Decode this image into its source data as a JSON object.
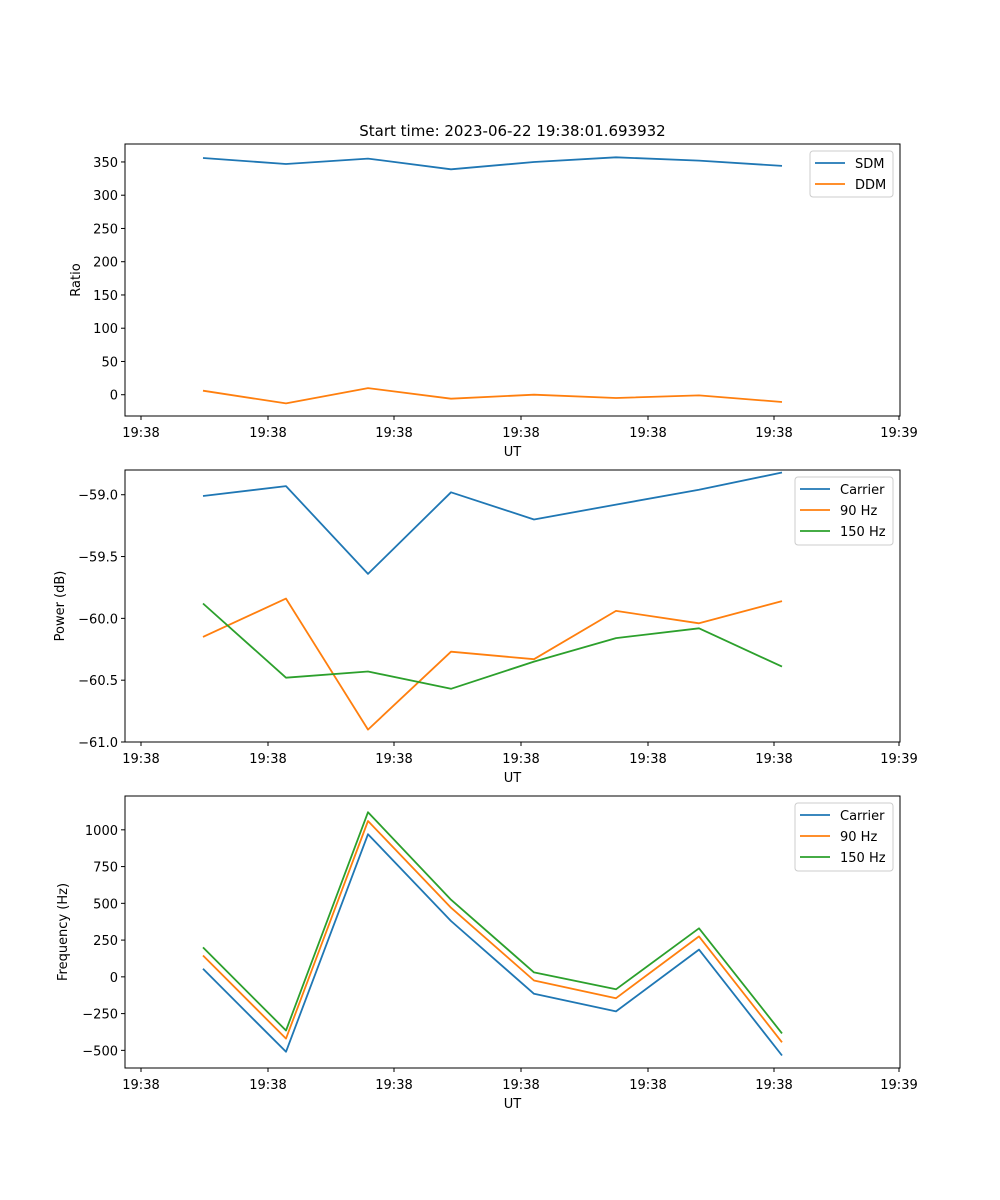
{
  "colors": {
    "blue": "#1f77b4",
    "orange": "#ff7f0e",
    "green": "#2ca02c"
  },
  "chart_data": [
    {
      "type": "line",
      "title": "Start time: 2023-06-22 19:38:01.693932",
      "xlabel": "UT",
      "ylabel": "Ratio",
      "x_tick_labels": [
        "19:38",
        "19:38",
        "19:38",
        "19:38",
        "19:38",
        "19:38",
        "19:38",
        "19:39"
      ],
      "ylim": [
        -32,
        377
      ],
      "y_ticks": [
        0,
        50,
        100,
        150,
        200,
        250,
        300,
        350
      ],
      "y_tick_labels": [
        "0",
        "50",
        "100",
        "150",
        "200",
        "250",
        "300",
        "350"
      ],
      "legend": "top-right",
      "series": [
        {
          "name": "SDM",
          "color": "#1f77b4",
          "values": [
            356,
            347,
            355,
            339,
            350,
            357,
            352,
            344
          ]
        },
        {
          "name": "DDM",
          "color": "#ff7f0e",
          "values": [
            6,
            -13,
            10,
            -6,
            0,
            -5,
            -1,
            -11
          ]
        }
      ]
    },
    {
      "type": "line",
      "title": "",
      "xlabel": "UT",
      "ylabel": "Power (dB)",
      "x_tick_labels": [
        "19:38",
        "19:38",
        "19:38",
        "19:38",
        "19:38",
        "19:38",
        "19:38",
        "19:39"
      ],
      "ylim": [
        -61.0,
        -58.8
      ],
      "y_ticks": [
        -61.0,
        -60.5,
        -60.0,
        -59.5,
        -59.0
      ],
      "y_tick_labels": [
        "−61.0",
        "−60.5",
        "−60.0",
        "−59.5",
        "−59.0"
      ],
      "legend": "top-right",
      "series": [
        {
          "name": "Carrier",
          "color": "#1f77b4",
          "values": [
            -59.01,
            -58.93,
            -59.64,
            -58.98,
            -59.2,
            -59.08,
            -58.96,
            -58.82
          ]
        },
        {
          "name": "90 Hz",
          "color": "#ff7f0e",
          "values": [
            -60.15,
            -59.84,
            -60.9,
            -60.27,
            -60.33,
            -59.94,
            -60.04,
            -59.86
          ]
        },
        {
          "name": "150 Hz",
          "color": "#2ca02c",
          "values": [
            -59.88,
            -60.48,
            -60.43,
            -60.57,
            -60.35,
            -60.16,
            -60.08,
            -60.39
          ]
        }
      ]
    },
    {
      "type": "line",
      "title": "",
      "xlabel": "UT",
      "ylabel": "Frequency (Hz)",
      "x_tick_labels": [
        "19:38",
        "19:38",
        "19:38",
        "19:38",
        "19:38",
        "19:38",
        "19:38",
        "19:39"
      ],
      "ylim": [
        -620,
        1230
      ],
      "y_ticks": [
        -500,
        -250,
        0,
        250,
        500,
        750,
        1000
      ],
      "y_tick_labels": [
        "−500",
        "−250",
        "0",
        "250",
        "500",
        "750",
        "1000"
      ],
      "legend": "top-right",
      "series": [
        {
          "name": "Carrier",
          "color": "#1f77b4",
          "values": [
            55,
            -510,
            970,
            380,
            -115,
            -235,
            185,
            -535
          ]
        },
        {
          "name": "90 Hz",
          "color": "#ff7f0e",
          "values": [
            145,
            -420,
            1060,
            470,
            -25,
            -145,
            275,
            -445
          ]
        },
        {
          "name": "150 Hz",
          "color": "#2ca02c",
          "values": [
            200,
            -365,
            1120,
            525,
            30,
            -85,
            330,
            -385
          ]
        }
      ]
    }
  ]
}
